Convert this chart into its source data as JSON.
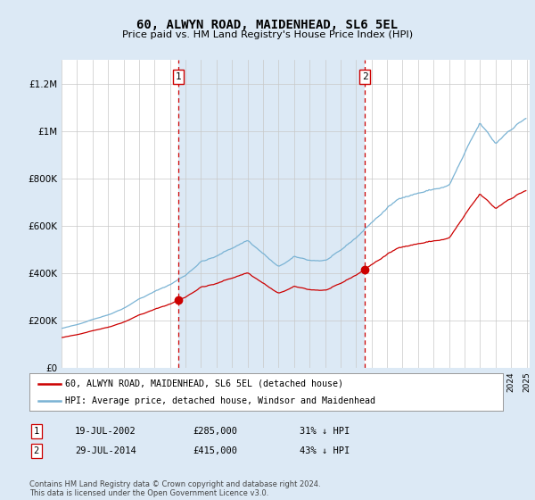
{
  "title": "60, ALWYN ROAD, MAIDENHEAD, SL6 5EL",
  "subtitle": "Price paid vs. HM Land Registry's House Price Index (HPI)",
  "background_color": "#dce9f5",
  "plot_bg_color": "#ffffff",
  "fill_region_color": "#dce9f5",
  "hpi_color": "#7ab3d4",
  "price_color": "#cc0000",
  "vline_color": "#cc0000",
  "marker1_year": 2002.54,
  "marker2_year": 2014.57,
  "marker1_label": "1",
  "marker2_label": "2",
  "sale1_price_val": 285000,
  "sale2_price_val": 415000,
  "sale1_date": "19-JUL-2002",
  "sale1_price": "£285,000",
  "sale1_hpi": "31% ↓ HPI",
  "sale2_date": "29-JUL-2014",
  "sale2_price": "£415,000",
  "sale2_hpi": "43% ↓ HPI",
  "legend_line1": "60, ALWYN ROAD, MAIDENHEAD, SL6 5EL (detached house)",
  "legend_line2": "HPI: Average price, detached house, Windsor and Maidenhead",
  "footer": "Contains HM Land Registry data © Crown copyright and database right 2024.\nThis data is licensed under the Open Government Licence v3.0.",
  "ylim": [
    0,
    1300000
  ],
  "yticks": [
    0,
    200000,
    400000,
    600000,
    800000,
    1000000,
    1200000
  ],
  "ytick_labels": [
    "£0",
    "£200K",
    "£400K",
    "£600K",
    "£800K",
    "£1M",
    "£1.2M"
  ],
  "xstart": 1995.0,
  "xend": 2025.2
}
